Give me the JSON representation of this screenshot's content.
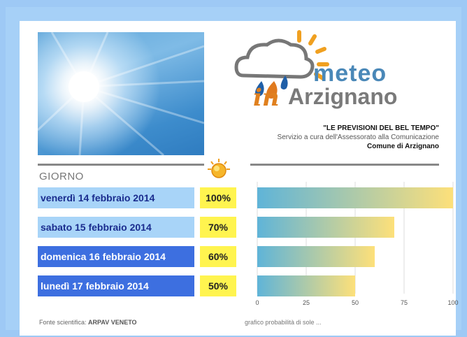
{
  "header": {
    "logo_meteo": "meteo",
    "logo_in": "in",
    "logo_town": "Arzignano",
    "title": "\"LE PREVISIONI DEL BEL TEMPO\"",
    "subtitle": "Servizio a cura dell'Assessorato alla Comunicazione",
    "comune": "Comune di Arzignano"
  },
  "table": {
    "column_label": "GIORNO",
    "rows": [
      {
        "day": "venerdì 14 febbraio 2014",
        "percent": "100%",
        "bg": "#a8d4f8",
        "fg": "#1a2c8e"
      },
      {
        "day": "sabato 15 febbraio 2014",
        "percent": "70%",
        "bg": "#a8d4f8",
        "fg": "#1a2c8e"
      },
      {
        "day": "domenica 16 febbraio 2014",
        "percent": "60%",
        "bg": "#3d6fe0",
        "fg": "#ffffff"
      },
      {
        "day": "lunedì 17 febbraio 2014",
        "percent": "50%",
        "bg": "#3d6fe0",
        "fg": "#ffffff"
      }
    ]
  },
  "icons": {
    "sun": "sun-icon",
    "logo": "cloud-rain-sun-icon"
  },
  "footer": {
    "source_label": "Fonte scientifica:",
    "source_value": "ARPAV VENETO"
  },
  "chart_data": {
    "type": "bar",
    "orientation": "horizontal",
    "categories": [
      "venerdì 14 febbraio 2014",
      "sabato 15 febbraio 2014",
      "domenica 16 febbraio 2014",
      "lunedì 17 febbraio 2014"
    ],
    "values": [
      100,
      70,
      60,
      50
    ],
    "xlim": [
      0,
      100
    ],
    "xticks": [
      0,
      25,
      50,
      75,
      100
    ],
    "xlabel": "grafico probabilità di sole ...",
    "grid": true,
    "bar_gradient": [
      "#5fb4d8",
      "#fde07a"
    ]
  }
}
